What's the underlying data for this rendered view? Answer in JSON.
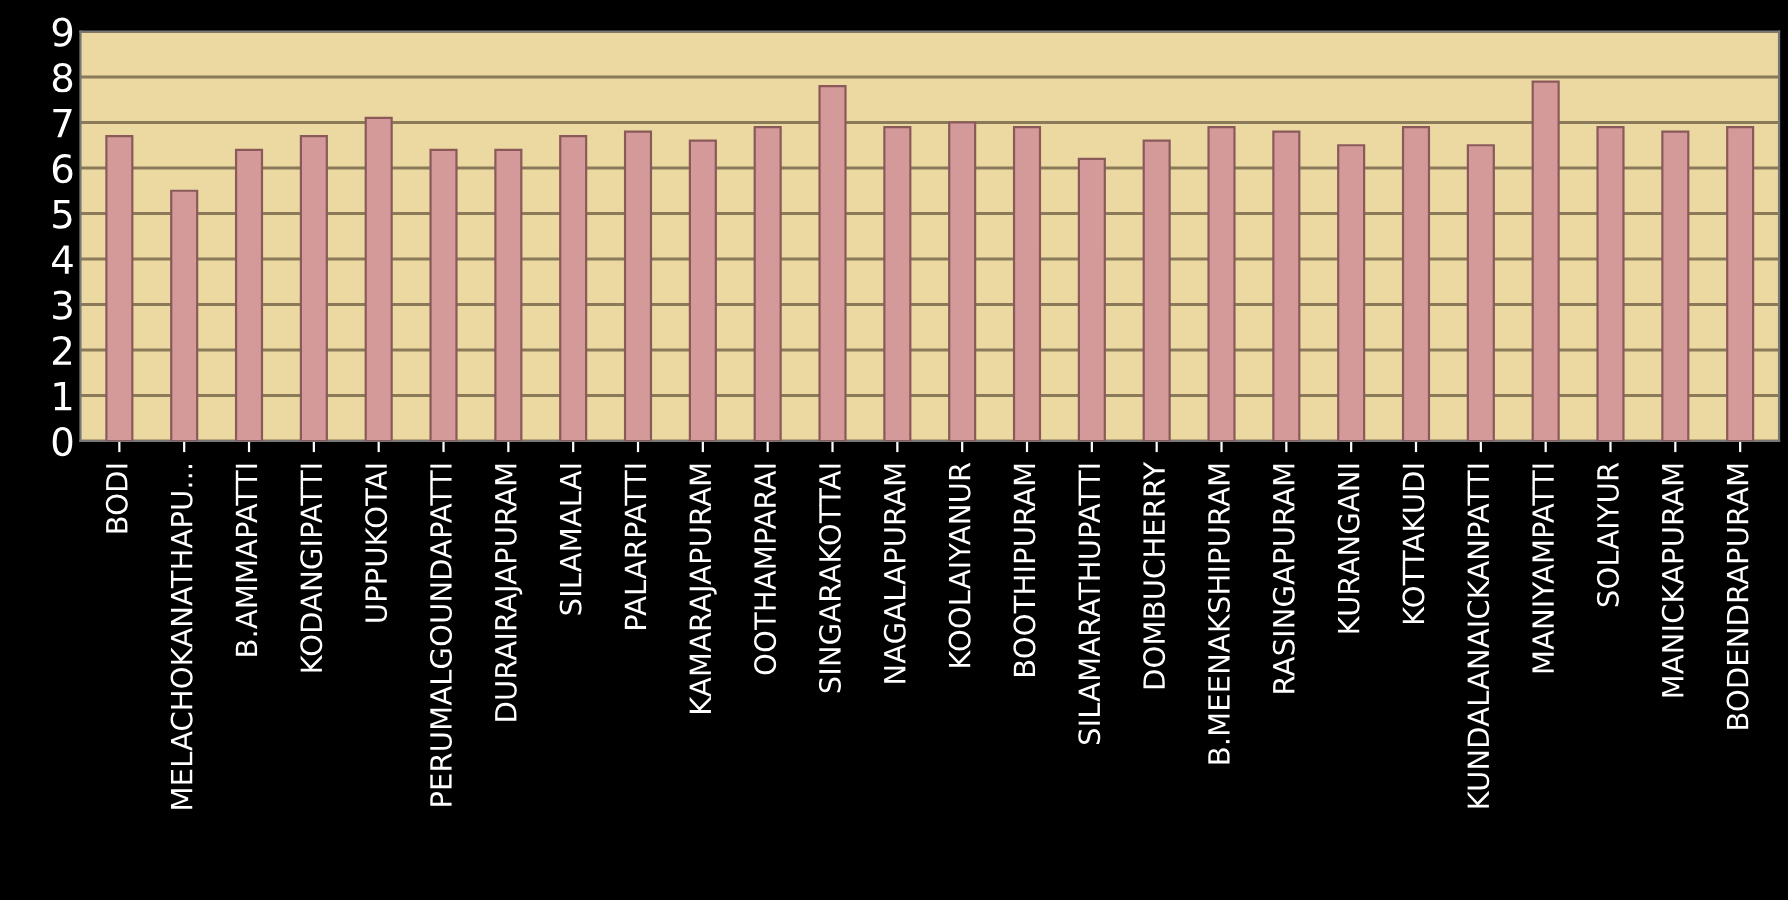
{
  "chart_data": {
    "type": "bar",
    "categories": [
      "BODI",
      "MELACHOKANATHAPU...",
      "B.AMMAPATTI",
      "KODANGIPATTI",
      "UPPUKOTAI",
      "PERUMALGOUNDAPATTI",
      "DURAIRAJAPURAM",
      "SILAMALAI",
      "PALARPATTI",
      "KAMARAJAPURAM",
      "OOTHAMPARAI",
      "SINGARAKOTTAI",
      "NAGALAPURAM",
      "KOOLAIYANUR",
      "BOOTHIPURAM",
      "SILAMARATHUPATTI",
      "DOMBUCHERRY",
      "B.MEENAKSHIPURAM",
      "RASINGAPURAM",
      "KURANGANI",
      "KOTTAKUDI",
      "KUNDALANAICKANPATTI",
      "MANIYAMPATTI",
      "SOLAIYUR",
      "MANICKAPURAM",
      "BODENDRAPURAM"
    ],
    "values": [
      6.7,
      5.5,
      6.4,
      6.7,
      7.1,
      6.4,
      6.4,
      6.7,
      6.8,
      6.6,
      6.9,
      7.8,
      6.9,
      7.0,
      6.9,
      6.2,
      6.6,
      6.9,
      6.8,
      6.5,
      6.9,
      6.5,
      7.9,
      6.9,
      6.8,
      6.9
    ],
    "color": "#d49a9a",
    "ylim": [
      0,
      9
    ],
    "yticks": [
      0,
      1,
      2,
      3,
      4,
      5,
      6,
      7,
      8,
      9
    ],
    "grid": "y"
  }
}
